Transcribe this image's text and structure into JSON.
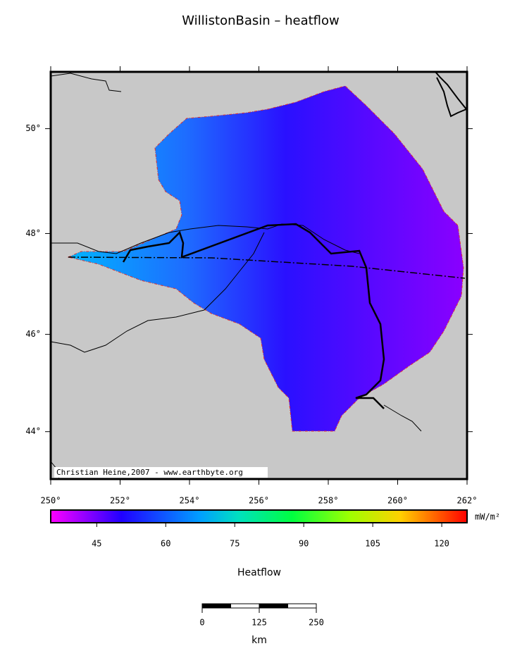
{
  "chart_data": {
    "type": "map",
    "title": "WillistonBasin – heatflow",
    "credit": "Christian Heine,2007 - www.earthbyte.org",
    "xlim": [
      250,
      262
    ],
    "xticks": [
      {
        "value": 250,
        "label": "250°"
      },
      {
        "value": 252,
        "label": "252°"
      },
      {
        "value": 254,
        "label": "254°"
      },
      {
        "value": 256,
        "label": "256°"
      },
      {
        "value": 258,
        "label": "258°"
      },
      {
        "value": 260,
        "label": "260°"
      },
      {
        "value": 262,
        "label": "262°"
      }
    ],
    "ylim": [
      43.0,
      51.05
    ],
    "yticks": [
      {
        "value": 44,
        "label": "44°"
      },
      {
        "value": 46,
        "label": "46°"
      },
      {
        "value": 48,
        "label": "48°"
      },
      {
        "value": 50,
        "label": "50°"
      }
    ],
    "colorbar": {
      "label": "Heatflow",
      "unit": "mW/m²",
      "clim": [
        35,
        125.5
      ],
      "ticks": [
        45,
        60,
        75,
        90,
        105,
        120
      ]
    },
    "scale_bar": {
      "ticks": [
        0,
        125,
        250
      ],
      "unit": "km"
    }
  }
}
